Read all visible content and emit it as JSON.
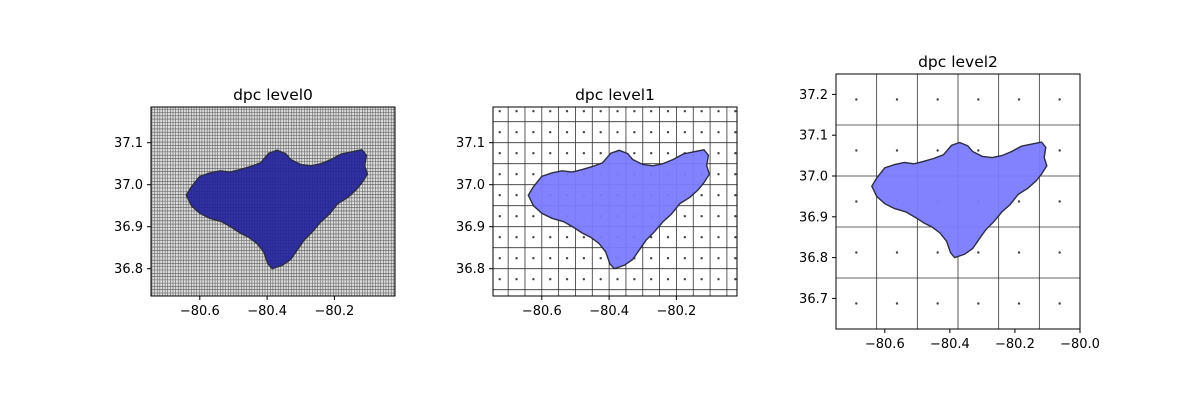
{
  "chart_data": [
    {
      "type": "heatmap",
      "title": "dpc level0",
      "xlim": [
        -80.745,
        -80.02
      ],
      "ylim": [
        36.735,
        37.185
      ],
      "xticks": [
        -80.6,
        -80.4,
        -80.2
      ],
      "xtick_labels": [
        "−80.6",
        "−80.4",
        "−80.2"
      ],
      "yticks": [
        36.8,
        36.9,
        37.0,
        37.1
      ],
      "ytick_labels": [
        "36.8",
        "36.9",
        "37.0",
        "37.1"
      ],
      "grid_cell_size_deg": 0.0078125,
      "polygon_fill": "#22229a",
      "polygon_alpha": 1.0
    },
    {
      "type": "heatmap",
      "title": "dpc level1",
      "xlim": [
        -80.745,
        -80.02
      ],
      "ylim": [
        36.735,
        37.185
      ],
      "xticks": [
        -80.6,
        -80.4,
        -80.2
      ],
      "xtick_labels": [
        "−80.6",
        "−80.4",
        "−80.2"
      ],
      "yticks": [
        36.8,
        36.9,
        37.0,
        37.1
      ],
      "ytick_labels": [
        "36.8",
        "36.9",
        "37.0",
        "37.1"
      ],
      "grid_cell_size_deg": 0.05,
      "polygon_fill": "#7b7bff",
      "polygon_alpha": 1.0
    },
    {
      "type": "heatmap",
      "title": "dpc level2",
      "xlim": [
        -80.75,
        -80.0
      ],
      "ylim": [
        36.625,
        37.25
      ],
      "xticks": [
        -80.6,
        -80.4,
        -80.2,
        -80.0
      ],
      "xtick_labels": [
        "−80.6",
        "−80.4",
        "−80.2",
        "−80.0"
      ],
      "yticks": [
        36.7,
        36.8,
        36.9,
        37.0,
        37.1,
        37.2
      ],
      "ytick_labels": [
        "36.7",
        "36.8",
        "36.9",
        "37.0",
        "37.1",
        "37.2"
      ],
      "grid_cell_size_deg": 0.125,
      "polygon_fill": "#7b7bff",
      "polygon_alpha": 1.0
    }
  ],
  "basin_polygon": [
    [
      -80.64,
      36.975
    ],
    [
      -80.625,
      36.995
    ],
    [
      -80.6,
      37.02
    ],
    [
      -80.57,
      37.028
    ],
    [
      -80.54,
      37.033
    ],
    [
      -80.51,
      37.03
    ],
    [
      -80.48,
      37.036
    ],
    [
      -80.45,
      37.043
    ],
    [
      -80.42,
      37.052
    ],
    [
      -80.395,
      37.075
    ],
    [
      -80.37,
      37.082
    ],
    [
      -80.345,
      37.074
    ],
    [
      -80.33,
      37.06
    ],
    [
      -80.3,
      37.048
    ],
    [
      -80.27,
      37.045
    ],
    [
      -80.24,
      37.05
    ],
    [
      -80.21,
      37.06
    ],
    [
      -80.18,
      37.073
    ],
    [
      -80.15,
      37.078
    ],
    [
      -80.118,
      37.083
    ],
    [
      -80.105,
      37.07
    ],
    [
      -80.11,
      37.045
    ],
    [
      -80.102,
      37.025
    ],
    [
      -80.118,
      37.005
    ],
    [
      -80.135,
      36.988
    ],
    [
      -80.16,
      36.97
    ],
    [
      -80.19,
      36.955
    ],
    [
      -80.215,
      36.93
    ],
    [
      -80.24,
      36.912
    ],
    [
      -80.265,
      36.888
    ],
    [
      -80.29,
      36.868
    ],
    [
      -80.31,
      36.845
    ],
    [
      -80.33,
      36.822
    ],
    [
      -80.355,
      36.808
    ],
    [
      -80.385,
      36.8
    ],
    [
      -80.398,
      36.812
    ],
    [
      -80.41,
      36.84
    ],
    [
      -80.43,
      36.86
    ],
    [
      -80.455,
      36.875
    ],
    [
      -80.48,
      36.885
    ],
    [
      -80.505,
      36.898
    ],
    [
      -80.535,
      36.912
    ],
    [
      -80.57,
      36.92
    ],
    [
      -80.6,
      36.932
    ],
    [
      -80.625,
      36.95
    ]
  ]
}
